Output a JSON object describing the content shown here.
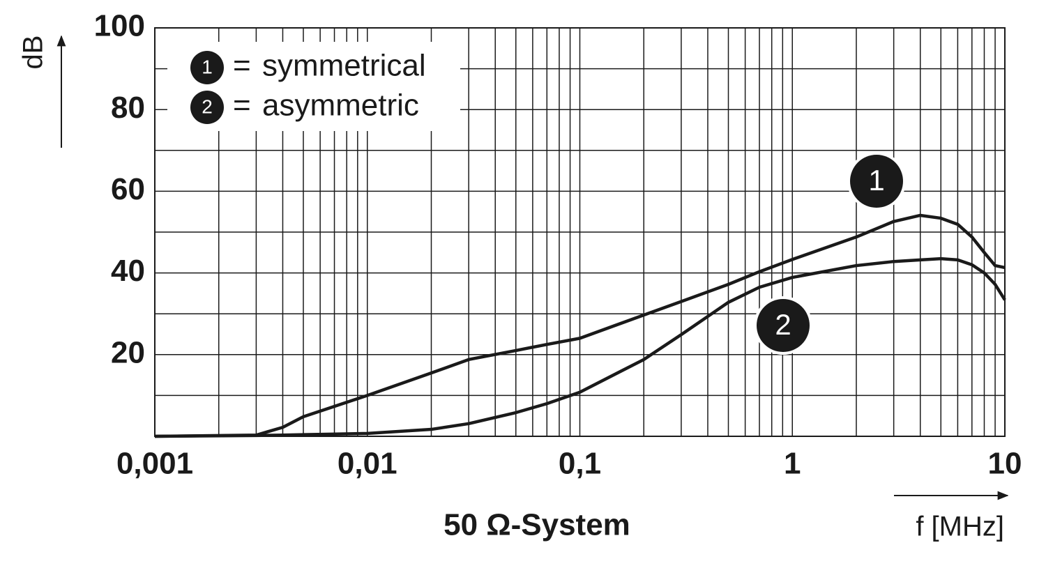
{
  "chart_data": {
    "type": "line",
    "caption": "50 Ω-System",
    "xlabel": "f [MHz]",
    "ylabel": "dB",
    "x": [
      0.001,
      0.003,
      0.004,
      0.005,
      0.01,
      0.02,
      0.03,
      0.05,
      0.07,
      0.1,
      0.2,
      0.3,
      0.5,
      0.7,
      1,
      2,
      3,
      4,
      5,
      6,
      7,
      8,
      9,
      10
    ],
    "series": [
      {
        "name": "symmetrical",
        "label": "1",
        "color": "#1a1a1a",
        "values": [
          0,
          0.3,
          2.2,
          4.8,
          10,
          15.5,
          18.8,
          21,
          22.5,
          24,
          29.7,
          33,
          37.2,
          40.3,
          43.3,
          48.8,
          52.6,
          54.1,
          53.4,
          51.9,
          48.8,
          45,
          41.8,
          41.3
        ]
      },
      {
        "name": "asymmetric",
        "label": "2",
        "color": "#1a1a1a",
        "values": [
          0,
          0.2,
          0.3,
          0.4,
          0.7,
          1.7,
          3.1,
          5.8,
          8,
          10.8,
          18.8,
          24.9,
          32.8,
          36.5,
          38.9,
          41.8,
          42.8,
          43.2,
          43.5,
          43.2,
          42,
          40,
          37.2,
          33.4
        ]
      }
    ],
    "legend_separator": "=",
    "xscale": "log",
    "xlim": [
      0.001,
      10
    ],
    "xticks": [
      {
        "value": 0.001,
        "label": "0,001"
      },
      {
        "value": 0.01,
        "label": "0,01"
      },
      {
        "value": 0.1,
        "label": "0,1"
      },
      1,
      10
    ],
    "ylim": [
      0,
      100
    ],
    "yticks": [
      20,
      40,
      60,
      80,
      100
    ],
    "y_minor_grid": [
      10,
      30,
      50,
      70,
      90
    ],
    "grid": true,
    "legend": "upper left"
  }
}
